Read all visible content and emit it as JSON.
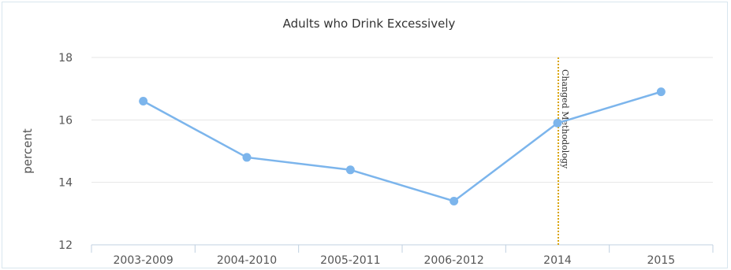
{
  "chart_data": {
    "type": "line",
    "title": "Adults who Drink Excessively",
    "xlabel": "",
    "ylabel": "percent",
    "categories": [
      "2003-2009",
      "2004-2010",
      "2005-2011",
      "2006-2012",
      "2014",
      "2015"
    ],
    "series": [
      {
        "values": [
          16.6,
          14.8,
          14.4,
          13.4,
          15.9,
          16.9
        ]
      }
    ],
    "ylim": [
      12,
      18
    ],
    "yticks": [
      12,
      14,
      16,
      18
    ],
    "grid": true,
    "legend": "none",
    "annotations": [
      {
        "text": "Changed Methodology",
        "at_category": "2014",
        "style": "dotted vertical line"
      }
    ],
    "colors": {
      "series": "#7cb5ec",
      "annotation_line": "#d9a40a",
      "grid": "#e6e6e6"
    }
  }
}
